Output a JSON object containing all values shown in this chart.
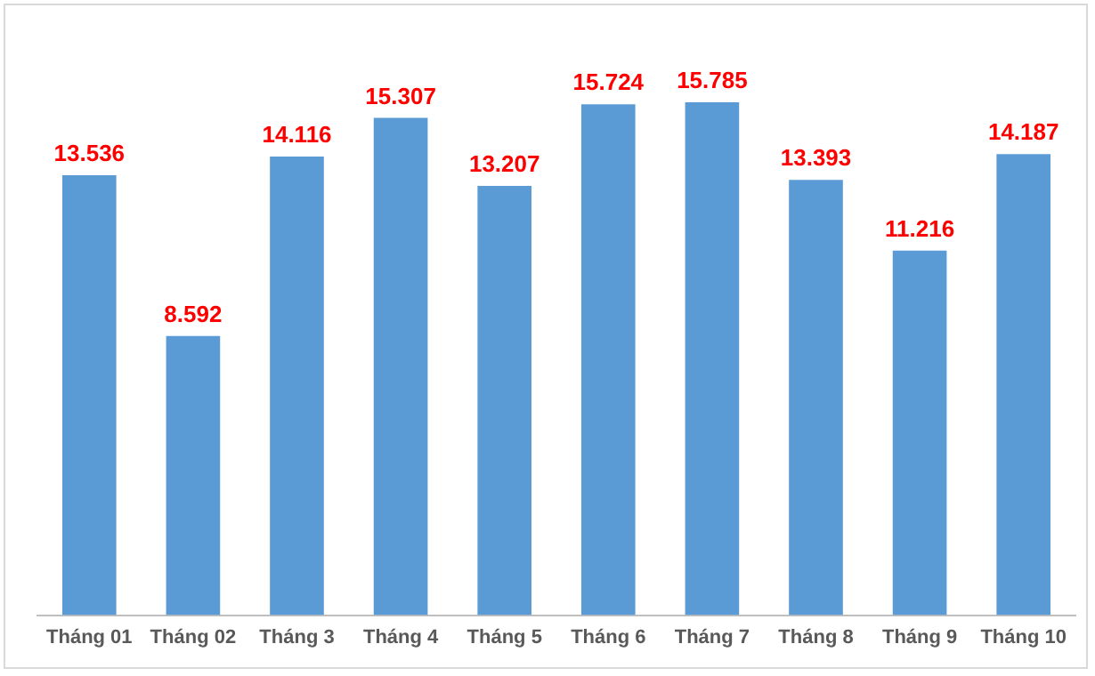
{
  "chart_data": {
    "type": "bar",
    "categories": [
      "Tháng 01",
      "Tháng 02",
      "Tháng 3",
      "Tháng 4",
      "Tháng 5",
      "Tháng 6",
      "Tháng 7",
      "Tháng 8",
      "Tháng 9",
      "Tháng 10"
    ],
    "values": [
      13536,
      8592,
      14116,
      15307,
      13207,
      15724,
      15785,
      13393,
      11216,
      14187
    ],
    "value_labels": [
      "13.536",
      "8.592",
      "14.116",
      "15.307",
      "13.207",
      "15.724",
      "15.785",
      "13.393",
      "11.216",
      "14.187"
    ],
    "color": "#5b9bd5",
    "grid": false,
    "legend": false
  }
}
